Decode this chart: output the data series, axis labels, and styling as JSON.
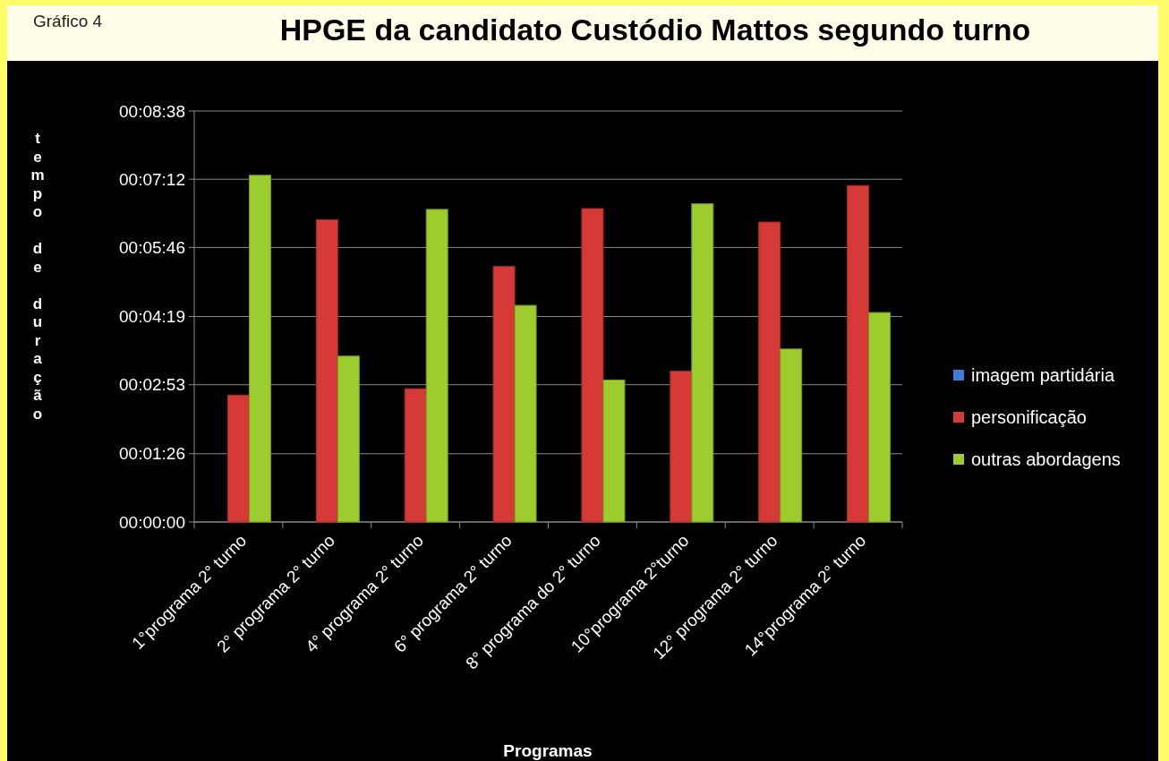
{
  "chart_data": {
    "type": "bar",
    "title": "HPGE da candidato Custódio Mattos segundo turno",
    "subtitle": "Gráfico 4",
    "xlabel": "Programas",
    "ylabel": "tempo de duração",
    "categories": [
      "1°programa 2° turno",
      "2° programa 2° turno",
      "4° programa 2° turno",
      "6° programa 2° turno",
      "8° programa do 2° turno",
      "10°programa 2°turno",
      "12° programa 2° turno",
      "14°programa 2° turno"
    ],
    "series": [
      {
        "name": "imagem partidária",
        "color": "#3b7dd8",
        "values": [
          0,
          0,
          0,
          0,
          0,
          0,
          0,
          0
        ]
      },
      {
        "name": "personificação",
        "color": "#d63a36",
        "values": [
          160,
          381,
          168,
          322,
          395,
          190,
          378,
          424
        ]
      },
      {
        "name": "outras abordagens",
        "color": "#9ccc2e",
        "values": [
          437,
          209,
          394,
          273,
          179,
          401,
          218,
          264
        ]
      }
    ],
    "ylim": [
      0,
      518
    ],
    "yticks": [
      {
        "value": 0,
        "label": "00:00:00"
      },
      {
        "value": 86,
        "label": "00:01:26"
      },
      {
        "value": 173,
        "label": "00:02:53"
      },
      {
        "value": 259,
        "label": "00:04:19"
      },
      {
        "value": 346,
        "label": "00:05:46"
      },
      {
        "value": 432,
        "label": "00:07:12"
      },
      {
        "value": 518,
        "label": "00:08:38"
      }
    ],
    "grid": "y",
    "legend": "right"
  }
}
